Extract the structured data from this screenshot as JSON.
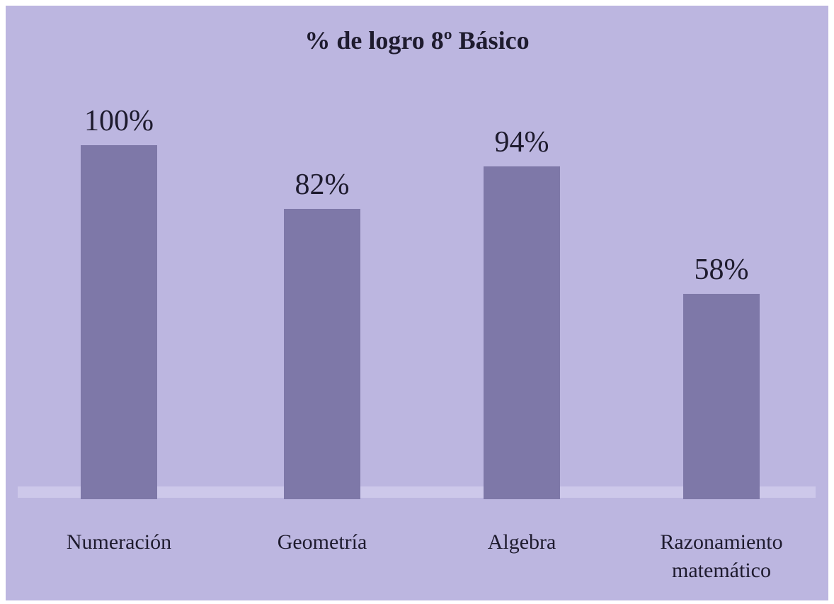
{
  "chart_data": {
    "type": "bar",
    "title": "% de logro 8º Básico",
    "categories": [
      "Numeración",
      "Geometría",
      "Algebra",
      "Razonamiento matemático"
    ],
    "values": [
      100,
      82,
      94,
      58
    ],
    "value_labels": [
      "100%",
      "82%",
      "94%",
      "58%"
    ],
    "color": "#7e78a8"
  }
}
